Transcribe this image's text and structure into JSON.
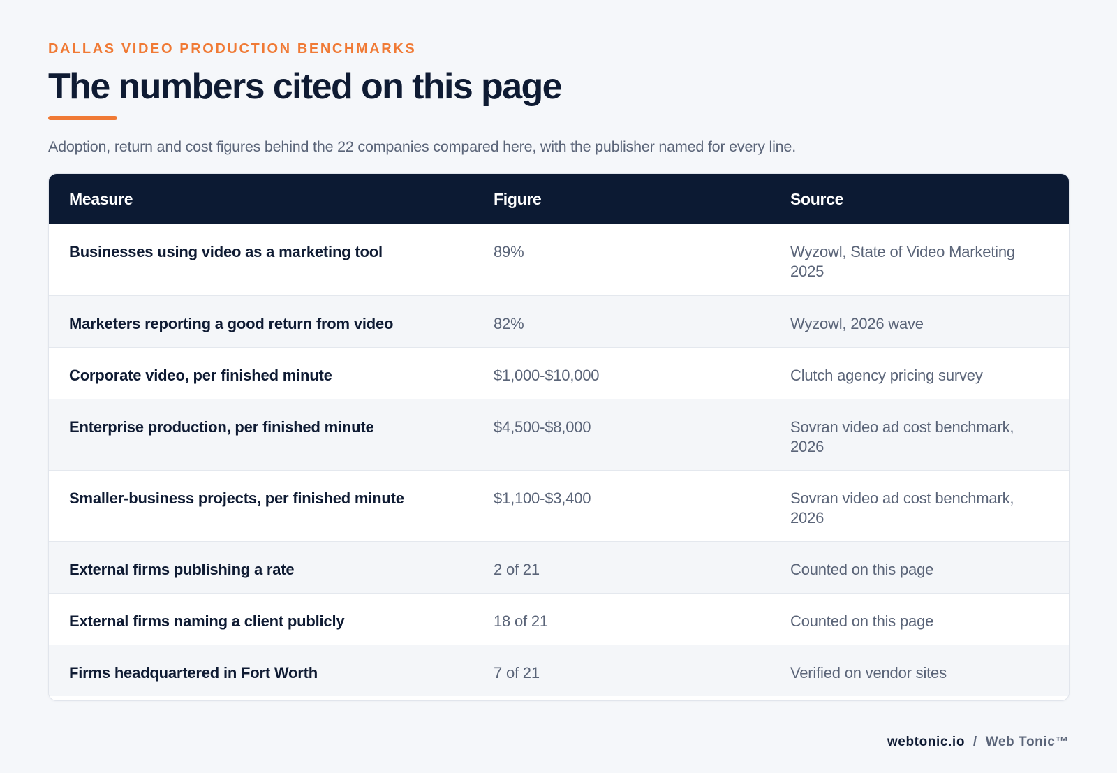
{
  "header": {
    "eyebrow": "DALLAS VIDEO PRODUCTION BENCHMARKS",
    "title": "The numbers cited on this page",
    "subtitle": "Adoption, return and cost figures behind the 22 companies compared here, with the publisher named for every line."
  },
  "table": {
    "columns": [
      "Measure",
      "Figure",
      "Source"
    ],
    "rows": [
      {
        "measure": "Businesses using video as a marketing tool",
        "figure": "89%",
        "source": "Wyzowl, State of Video Marketing 2025"
      },
      {
        "measure": "Marketers reporting a good return from video",
        "figure": "82%",
        "source": "Wyzowl, 2026 wave"
      },
      {
        "measure": "Corporate video, per finished minute",
        "figure": "$1,000-$10,000",
        "source": "Clutch agency pricing survey"
      },
      {
        "measure": "Enterprise production, per finished minute",
        "figure": "$4,500-$8,000",
        "source": "Sovran video ad cost benchmark, 2026"
      },
      {
        "measure": "Smaller-business projects, per finished minute",
        "figure": "$1,100-$3,400",
        "source": "Sovran video ad cost benchmark, 2026"
      },
      {
        "measure": "External firms publishing a rate",
        "figure": "2 of 21",
        "source": "Counted on this page"
      },
      {
        "measure": "External firms naming a client publicly",
        "figure": "18 of 21",
        "source": "Counted on this page"
      },
      {
        "measure": "Firms headquartered in Fort Worth",
        "figure": "7 of 21",
        "source": "Verified on vendor sites"
      }
    ]
  },
  "footer": {
    "domain": "webtonic.io",
    "separator": "/",
    "brand": "Web Tonic™"
  },
  "colors": {
    "accent": "#f07a35",
    "header_bg": "#0c1a33",
    "page_bg": "#f5f7fa",
    "text_dark": "#0f1b33",
    "text_muted": "#5a6478"
  }
}
